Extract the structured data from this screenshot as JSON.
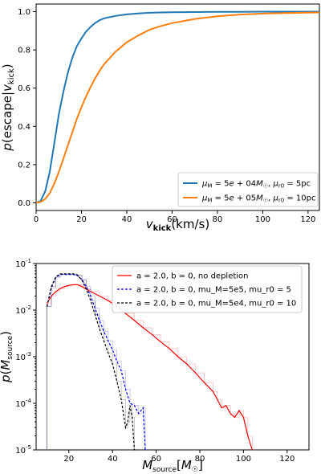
{
  "chart_data": [
    {
      "type": "line",
      "title": "",
      "xlabel": "v_kick (km/s)",
      "ylabel": "p(escape|v_kick)",
      "xlim": [
        0,
        125
      ],
      "ylim": [
        -0.04,
        1.04
      ],
      "xticks": [
        "0",
        "20",
        "40",
        "60",
        "80",
        "100",
        "120"
      ],
      "yticks": [
        "0.0",
        "0.2",
        "0.4",
        "0.6",
        "0.8",
        "1.0"
      ],
      "grid": false,
      "legend_position": "lower-right",
      "series": [
        {
          "name": "μ_M = 5e+04 M☉, μ_r0 = 5pc",
          "color": "#1f77b4",
          "x": [
            0,
            2,
            4,
            6,
            8,
            10,
            12,
            14,
            16,
            18,
            20,
            22,
            24,
            26,
            28,
            30,
            35,
            40,
            45,
            50,
            55,
            60,
            70,
            80,
            90,
            100,
            110,
            125
          ],
          "y": [
            0.0,
            0.01,
            0.06,
            0.16,
            0.31,
            0.46,
            0.58,
            0.68,
            0.76,
            0.82,
            0.86,
            0.895,
            0.92,
            0.94,
            0.955,
            0.965,
            0.978,
            0.986,
            0.991,
            0.994,
            0.996,
            0.997,
            0.998,
            0.999,
            0.999,
            1.0,
            1.0,
            1.0
          ]
        },
        {
          "name": "μ_M = 5e+05 M☉, μ_r0 = 10pc",
          "color": "#ff7f0e",
          "x": [
            0,
            2,
            4,
            6,
            8,
            10,
            12,
            14,
            16,
            18,
            20,
            22,
            24,
            26,
            28,
            30,
            35,
            40,
            45,
            50,
            55,
            60,
            70,
            80,
            90,
            100,
            110,
            125
          ],
          "y": [
            0.0,
            0.005,
            0.02,
            0.05,
            0.1,
            0.16,
            0.23,
            0.3,
            0.37,
            0.44,
            0.5,
            0.555,
            0.605,
            0.65,
            0.69,
            0.725,
            0.79,
            0.84,
            0.875,
            0.905,
            0.925,
            0.94,
            0.962,
            0.976,
            0.985,
            0.99,
            0.993,
            0.996
          ]
        }
      ]
    },
    {
      "type": "line",
      "title": "",
      "xlabel": "M_source [M☉]",
      "ylabel": "p(M_source)",
      "xlim": [
        5,
        130
      ],
      "ylim": [
        1e-05,
        0.1
      ],
      "log_y": true,
      "xticks": [
        "20",
        "40",
        "60",
        "80",
        "100",
        "120"
      ],
      "yticks": [
        "10^-5",
        "10^-4",
        "10^-3",
        "10^-2",
        "10^-1"
      ],
      "grid": false,
      "legend_position": "upper-right",
      "series": [
        {
          "name": "a = 2.0, b = 0, no depletion",
          "color": "#ff0000",
          "style": "solid",
          "x": [
            10,
            12,
            14,
            16,
            18,
            20,
            22,
            24,
            26,
            28,
            30,
            34,
            38,
            42,
            46,
            50,
            54,
            58,
            62,
            66,
            70,
            74,
            78,
            82,
            86,
            88,
            90,
            92,
            94,
            96,
            98,
            100,
            102,
            104
          ],
          "y": [
            0.014,
            0.02,
            0.025,
            0.029,
            0.032,
            0.034,
            0.035,
            0.035,
            0.032,
            0.028,
            0.025,
            0.02,
            0.016,
            0.012,
            0.0085,
            0.006,
            0.0042,
            0.003,
            0.0021,
            0.0015,
            0.001,
            0.0007,
            0.00045,
            0.00028,
            0.00018,
            0.00012,
            8e-05,
            9e-05,
            6e-05,
            5e-05,
            7e-05,
            5e-05,
            2e-05,
            1e-05
          ]
        },
        {
          "name": "a = 2.0, b = 0, mu_M=5e5, mu_r0 = 5",
          "color": "#0000ff",
          "style": "dashed",
          "x": [
            10,
            12,
            14,
            16,
            18,
            20,
            22,
            24,
            26,
            28,
            30,
            32,
            34,
            36,
            38,
            40,
            42,
            44,
            46,
            48,
            50,
            52,
            54,
            55
          ],
          "y": [
            0.012,
            0.03,
            0.05,
            0.058,
            0.058,
            0.058,
            0.058,
            0.055,
            0.045,
            0.032,
            0.02,
            0.011,
            0.006,
            0.0035,
            0.0022,
            0.0014,
            0.0008,
            0.0005,
            0.0002,
            0.0001,
            9e-05,
            6e-05,
            8e-05,
            1e-05
          ]
        },
        {
          "name": "a = 2.0, b = 0, mu_M=5e4, mu_r0 = 10",
          "color": "#000000",
          "style": "dashed",
          "x": [
            10,
            12,
            14,
            16,
            18,
            20,
            22,
            24,
            26,
            28,
            30,
            32,
            34,
            36,
            38,
            40,
            42,
            44,
            46,
            47,
            48,
            49,
            50,
            51
          ],
          "y": [
            0.012,
            0.032,
            0.052,
            0.06,
            0.06,
            0.06,
            0.06,
            0.056,
            0.044,
            0.028,
            0.016,
            0.008,
            0.004,
            0.0022,
            0.0012,
            0.0007,
            0.0003,
            0.00012,
            3e-05,
            4e-05,
            9e-05,
            5e-05,
            1e-05,
            1e-05
          ]
        }
      ]
    }
  ]
}
